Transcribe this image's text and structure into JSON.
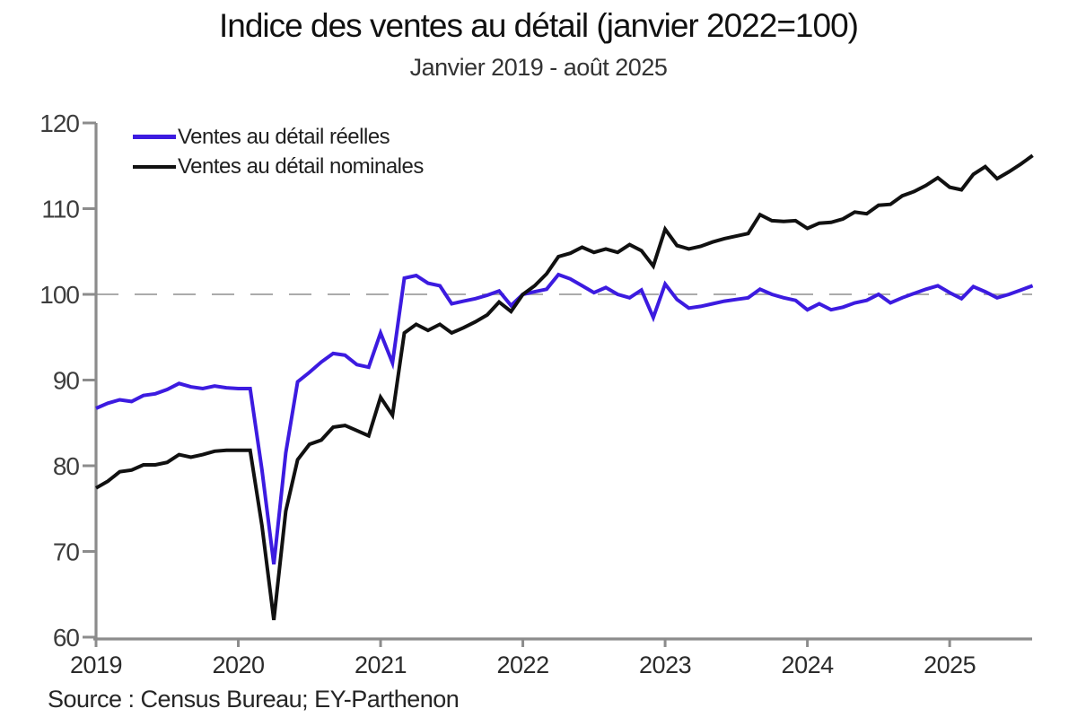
{
  "title": "Indice des ventes au détail (janvier 2022=100)",
  "subtitle": "Janvier 2019 - août 2025",
  "source": "Source : Census Bureau; EY-Parthenon",
  "colors": {
    "real_line": "#3c1be0",
    "nominal_line": "#111111",
    "axis": "#8c8c8c",
    "reference_dash": "#ababab",
    "tick_label": "#3d3d3d"
  },
  "chart_data": {
    "type": "line",
    "title": "Indice des ventes au détail (janvier 2022=100)",
    "subtitle": "Janvier 2019 - août 2025",
    "x_unit": "month",
    "x_start": "2019-01",
    "x_end": "2025-08",
    "x_tick_labels": [
      "2019",
      "2020",
      "2021",
      "2022",
      "2023",
      "2024",
      "2025"
    ],
    "months_per_x_tick": 12,
    "y_ticks": [
      60,
      70,
      80,
      90,
      100,
      110,
      120
    ],
    "ylim": [
      60,
      120
    ],
    "reference_line_y": 100,
    "grid": "none",
    "legend_position": "top-left",
    "series": [
      {
        "name": "Ventes au détail réelles",
        "color": "#3c1be0",
        "values": [
          86.7,
          87.3,
          87.7,
          87.5,
          88.2,
          88.4,
          88.9,
          89.6,
          89.2,
          89.0,
          89.3,
          89.1,
          89.0,
          89.0,
          79.5,
          68.5,
          81.5,
          89.8,
          90.9,
          92.1,
          93.1,
          92.9,
          91.8,
          91.5,
          95.5,
          92.0,
          101.9,
          102.2,
          101.3,
          101.0,
          98.9,
          99.2,
          99.5,
          99.9,
          100.4,
          98.7,
          100.0,
          100.3,
          100.6,
          102.3,
          101.8,
          101.0,
          100.2,
          100.8,
          100.0,
          99.6,
          100.5,
          97.3,
          101.2,
          99.4,
          98.4,
          98.6,
          98.9,
          99.2,
          99.4,
          99.6,
          100.6,
          100.0,
          99.6,
          99.3,
          98.2,
          98.9,
          98.2,
          98.5,
          99.0,
          99.3,
          100.0,
          99.0,
          99.6,
          100.1,
          100.6,
          101.0,
          100.2,
          99.5,
          100.9,
          100.3,
          99.6,
          100.0,
          100.5,
          101.0
        ]
      },
      {
        "name": "Ventes au détail nominales",
        "color": "#111111",
        "values": [
          77.4,
          78.2,
          79.3,
          79.5,
          80.1,
          80.1,
          80.4,
          81.3,
          81.0,
          81.3,
          81.7,
          81.8,
          81.8,
          81.8,
          73.0,
          62.0,
          74.7,
          80.7,
          82.5,
          83.0,
          84.5,
          84.7,
          84.1,
          83.5,
          88.0,
          85.9,
          95.5,
          96.5,
          95.8,
          96.5,
          95.5,
          96.1,
          96.8,
          97.6,
          99.1,
          98.0,
          100.0,
          101.0,
          102.4,
          104.4,
          104.8,
          105.5,
          104.9,
          105.3,
          104.9,
          105.8,
          105.1,
          103.3,
          107.6,
          105.7,
          105.3,
          105.6,
          106.1,
          106.5,
          106.8,
          107.1,
          109.3,
          108.6,
          108.5,
          108.6,
          107.7,
          108.3,
          108.4,
          108.8,
          109.6,
          109.4,
          110.4,
          110.5,
          111.5,
          112.0,
          112.7,
          113.6,
          112.5,
          112.2,
          114.0,
          114.9,
          113.5,
          114.3,
          115.2,
          116.2
        ]
      }
    ]
  }
}
